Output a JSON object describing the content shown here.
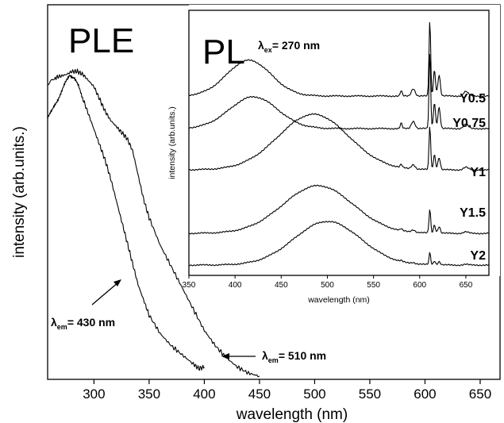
{
  "chart_data": [
    {
      "type": "line",
      "title": "PLE",
      "xlabel": "wavelength (nm)",
      "ylabel": "intensity (arb.units.)",
      "xlim": [
        258,
        668
      ],
      "x_ticks": [
        300,
        350,
        400,
        450,
        500,
        550,
        600,
        650
      ],
      "y_ticks_shown": false,
      "series": [
        {
          "annotation": {
            "lambda": "λ",
            "sub": "em",
            "text": "= 430 nm"
          },
          "x": [
            258,
            262,
            266,
            270,
            274,
            278,
            282,
            286,
            290,
            295,
            300,
            305,
            310,
            315,
            320,
            325,
            330,
            335,
            340,
            345,
            350,
            360,
            370,
            380,
            390,
            395,
            400
          ],
          "y": [
            0.85,
            0.87,
            0.9,
            0.93,
            0.96,
            0.99,
            0.98,
            0.95,
            0.91,
            0.86,
            0.81,
            0.76,
            0.71,
            0.65,
            0.58,
            0.51,
            0.44,
            0.37,
            0.3,
            0.25,
            0.2,
            0.14,
            0.1,
            0.07,
            0.04,
            0.025,
            0.03
          ]
        },
        {
          "annotation": {
            "lambda": "λ",
            "sub": "em",
            "text": "= 510 nm"
          },
          "x": [
            258,
            265,
            270,
            275,
            280,
            285,
            290,
            295,
            300,
            305,
            310,
            315,
            320,
            325,
            330,
            335,
            340,
            345,
            350,
            360,
            370,
            380,
            390,
            400,
            410,
            420,
            430,
            440,
            450
          ],
          "y": [
            0.96,
            0.98,
            0.985,
            0.99,
            1.0,
            1.0,
            0.99,
            0.97,
            0.95,
            0.91,
            0.87,
            0.84,
            0.82,
            0.8,
            0.78,
            0.74,
            0.66,
            0.58,
            0.52,
            0.43,
            0.36,
            0.29,
            0.22,
            0.15,
            0.1,
            0.06,
            0.03,
            0.01,
            0.0
          ]
        }
      ]
    },
    {
      "type": "line",
      "title": "PL",
      "excitation": {
        "lambda": "λ",
        "sub": "ex",
        "text": "= 270 nm"
      },
      "xlabel": "wavelength (nm)",
      "ylabel": "intensity (arb.units.)",
      "xlim": [
        350,
        675
      ],
      "x_ticks": [
        350,
        400,
        450,
        500,
        550,
        600,
        650
      ],
      "y_ticks_shown": false,
      "series": [
        {
          "name": "Y0.5",
          "offset": 4,
          "broad_center": 415,
          "broad_amp": 0.45,
          "broad_width": 24,
          "line_amp": 0.95
        },
        {
          "name": "Y0.75",
          "offset": 3,
          "broad_center": 420,
          "broad_amp": 0.4,
          "broad_width": 26,
          "line_amp": 0.95
        },
        {
          "name": "Y1",
          "offset": 2,
          "broad_center": 485,
          "broad_amp": 0.7,
          "broad_width": 38,
          "line_amp": 0.55
        },
        {
          "name": "Y1.5",
          "offset": 1,
          "broad_center": 490,
          "broad_amp": 0.6,
          "broad_width": 38,
          "line_amp": 0.3
        },
        {
          "name": "Y2",
          "offset": 0,
          "broad_center": 500,
          "broad_amp": 0.55,
          "broad_width": 36,
          "line_amp": 0.15
        }
      ]
    }
  ]
}
